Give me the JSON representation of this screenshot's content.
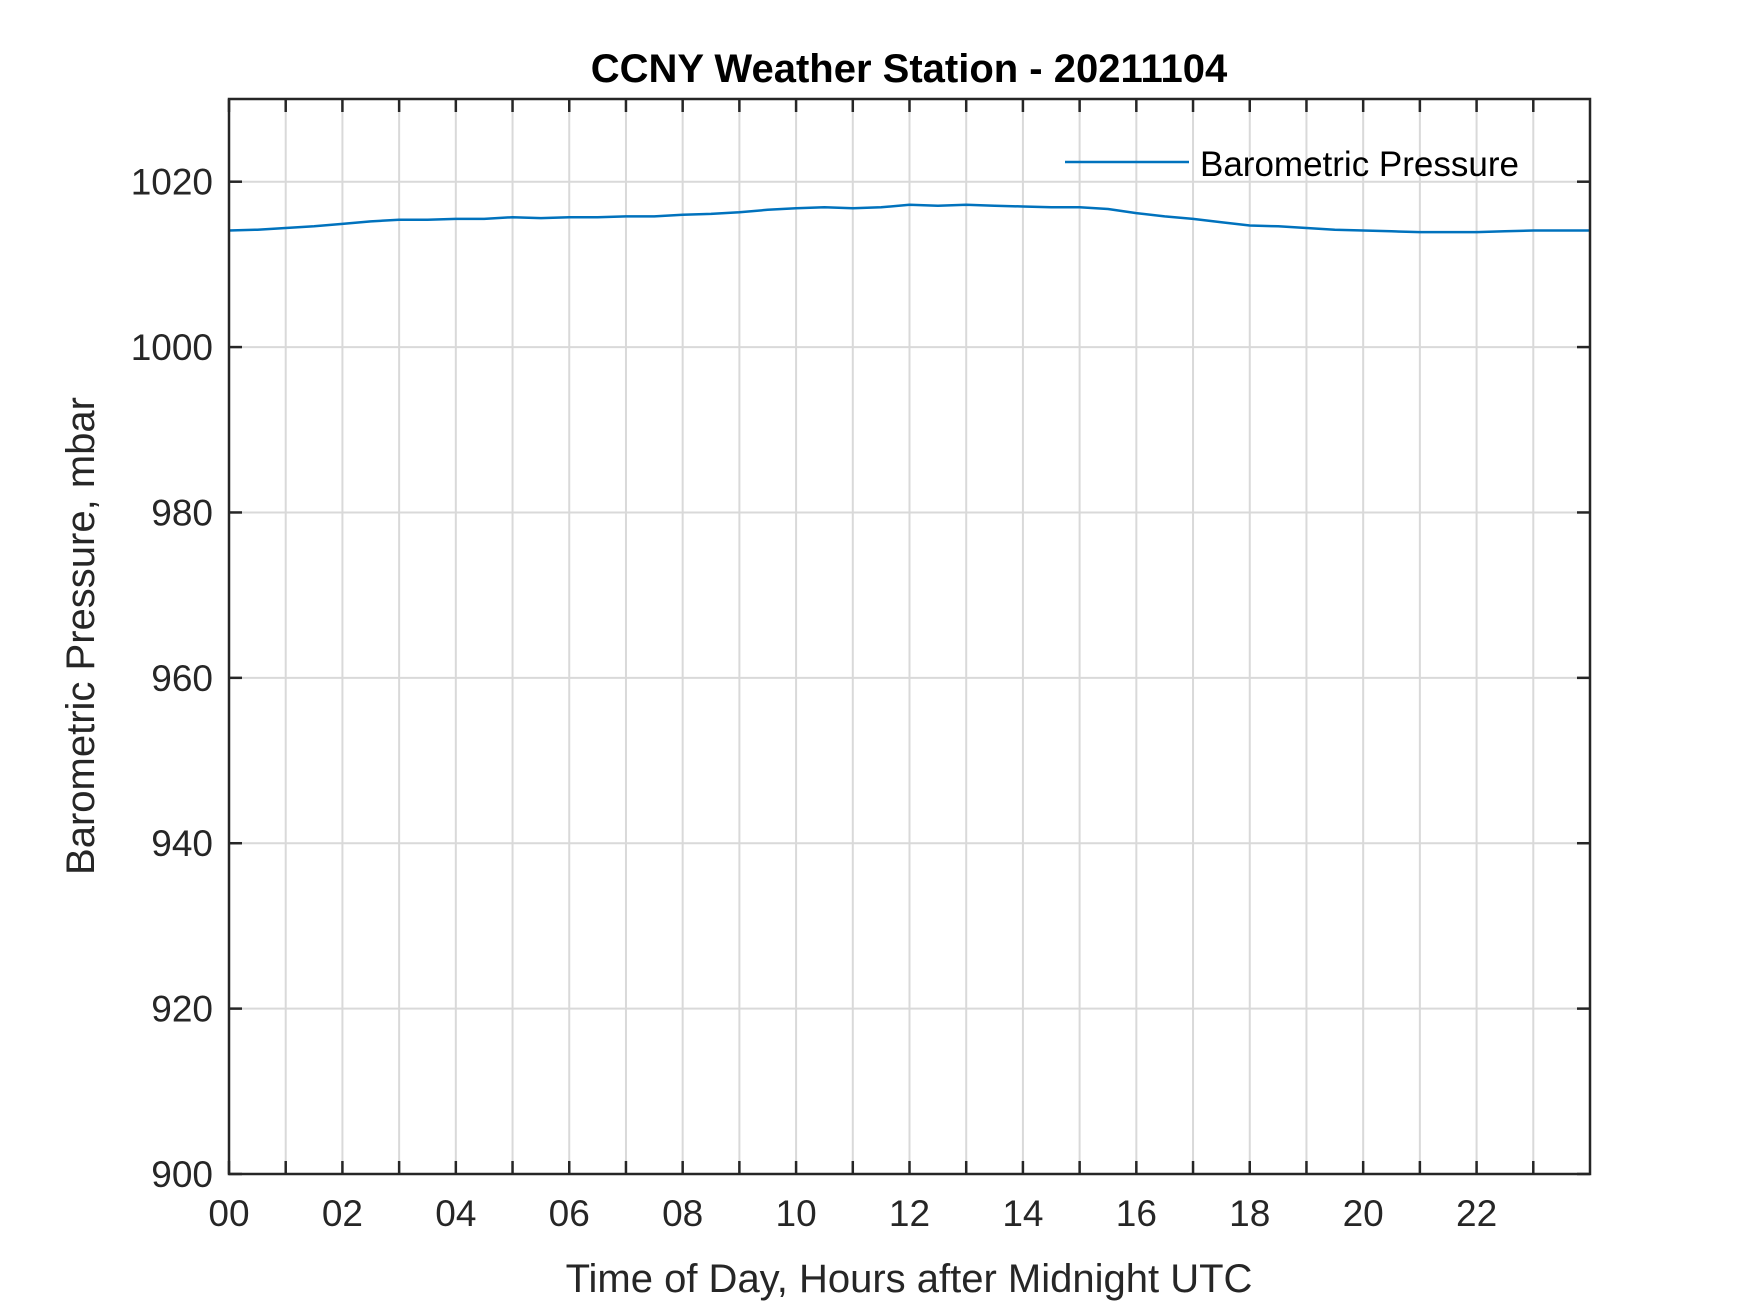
{
  "chart_data": {
    "type": "line",
    "title": "CCNY Weather Station - 20211104",
    "xlabel": "Time of Day, Hours after Midnight UTC",
    "ylabel": "Barometric Pressure, mbar",
    "xlim": [
      0,
      24
    ],
    "ylim": [
      900,
      1030
    ],
    "x_ticks": [
      0,
      2,
      4,
      6,
      8,
      10,
      12,
      14,
      16,
      18,
      20,
      22
    ],
    "x_tick_labels": [
      "00",
      "02",
      "04",
      "06",
      "08",
      "10",
      "12",
      "14",
      "16",
      "18",
      "20",
      "22"
    ],
    "x_grid": [
      0,
      1,
      2,
      3,
      4,
      5,
      6,
      7,
      8,
      9,
      10,
      11,
      12,
      13,
      14,
      15,
      16,
      17,
      18,
      19,
      20,
      21,
      22,
      23
    ],
    "y_ticks": [
      900,
      920,
      940,
      960,
      980,
      1000,
      1020
    ],
    "y_tick_labels": [
      "900",
      "920",
      "940",
      "960",
      "980",
      "1000",
      "1020"
    ],
    "grid": true,
    "legend_position": "top-right",
    "series": [
      {
        "name": "Barometric Pressure",
        "color": "#0072BD",
        "x": [
          0,
          0.5,
          1,
          1.5,
          2,
          2.5,
          3,
          3.5,
          4,
          4.5,
          5,
          5.5,
          6,
          6.5,
          7,
          7.5,
          8,
          8.5,
          9,
          9.5,
          10,
          10.5,
          11,
          11.5,
          12,
          12.5,
          13,
          13.5,
          14,
          14.5,
          15,
          15.5,
          16,
          16.5,
          17,
          17.5,
          18,
          18.5,
          19,
          19.5,
          20,
          20.5,
          21,
          21.5,
          22,
          22.5,
          23,
          23.5,
          24
        ],
        "y": [
          1014.1,
          1014.2,
          1014.4,
          1014.6,
          1014.9,
          1015.2,
          1015.4,
          1015.4,
          1015.5,
          1015.5,
          1015.7,
          1015.6,
          1015.7,
          1015.7,
          1015.8,
          1015.8,
          1016.0,
          1016.1,
          1016.3,
          1016.6,
          1016.8,
          1016.9,
          1016.8,
          1016.9,
          1017.2,
          1017.1,
          1017.2,
          1017.1,
          1017.0,
          1016.9,
          1016.9,
          1016.7,
          1016.2,
          1015.8,
          1015.5,
          1015.1,
          1014.7,
          1014.6,
          1014.4,
          1014.2,
          1014.1,
          1014.0,
          1013.9,
          1013.9,
          1013.9,
          1014.0,
          1014.1,
          1014.1,
          1014.1
        ]
      }
    ]
  }
}
